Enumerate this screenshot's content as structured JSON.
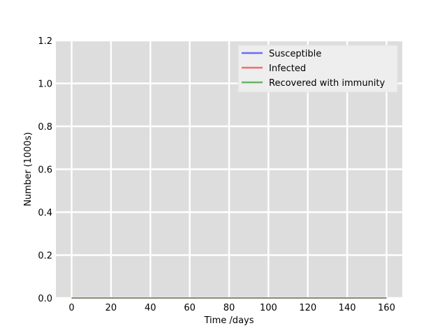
{
  "chart_data": {
    "type": "line",
    "title": "",
    "xlabel": "Time /days",
    "ylabel": "Number (1000s)",
    "xlim": [
      -8,
      168
    ],
    "ylim": [
      0.0,
      1.2
    ],
    "x_ticks": [
      0,
      20,
      40,
      60,
      80,
      100,
      120,
      140,
      160
    ],
    "y_ticks": [
      0.0,
      0.2,
      0.4,
      0.6,
      0.8,
      1.0,
      1.2
    ],
    "x_tick_labels": [
      "0",
      "20",
      "40",
      "60",
      "80",
      "100",
      "120",
      "140",
      "160"
    ],
    "y_tick_labels": [
      "0.0",
      "0.2",
      "0.4",
      "0.6",
      "0.8",
      "1.0",
      "1.2"
    ],
    "grid": true,
    "legend_position": "top-right",
    "background": "#dddddd",
    "x": [
      0,
      160
    ],
    "series": [
      {
        "name": "Susceptible",
        "color": "#0000ff",
        "values": [
          0.0,
          0.0
        ]
      },
      {
        "name": "Infected",
        "color": "#ff0000",
        "values": [
          0.0,
          0.0
        ]
      },
      {
        "name": "Recovered with immunity",
        "color": "#008000",
        "values": [
          0.0,
          0.0
        ]
      }
    ]
  }
}
